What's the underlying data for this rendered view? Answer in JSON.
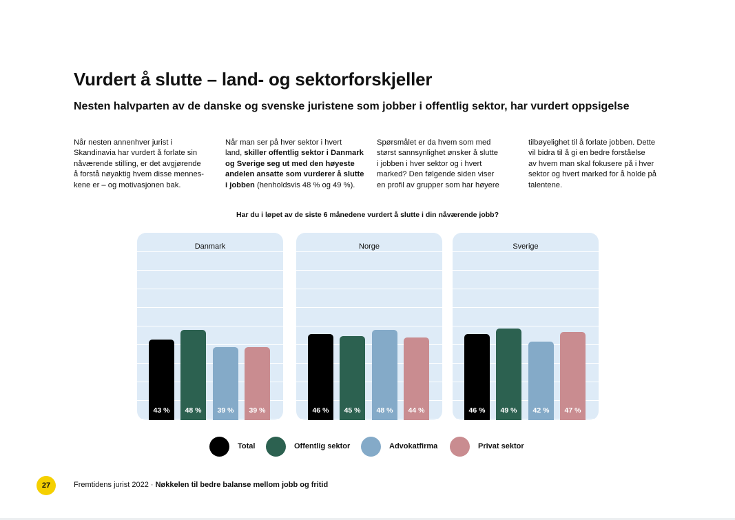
{
  "page": {
    "title": "Vurdert å slutte – land- og sektorforskjeller",
    "subtitle": "Nesten halvparten av de danske og svenske juristene som jobber i offentlig sektor, har vurdert oppsigelse"
  },
  "columns": [
    {
      "lines": [
        "Når nesten annenhver jurist i",
        "Skandinavia har vurdert å forlate sin",
        "nåværende stilling, er det avgjørende",
        "å forstå nøyaktig hvem disse mennes-",
        "kene er – og motivasjonen bak."
      ]
    },
    {
      "l1": "Når man ser på hver sektor i hvert",
      "l2a": "land, ",
      "l2b": "skiller offentlig sektor i Danmark",
      "l3": "og Sverige seg ut med den høyeste",
      "l4": "andelen ansatte som vurderer å slutte",
      "l5a": "i jobben",
      "l5b": " (henholdsvis 48 % og 49 %)."
    },
    {
      "lines": [
        "Spørsmålet er da hvem som med",
        "størst sannsynlighet ønsker å slutte",
        "i jobben i hver sektor og i hvert",
        "marked? Den følgende siden viser",
        "en profil av grupper som har høyere"
      ]
    },
    {
      "lines": [
        "tilbøyelighet til å forlate jobben. Dette",
        "vil bidra til å gi en bedre forståelse",
        "av hvem man skal fokusere på i hver",
        "sektor og hvert marked for å holde på",
        "talentene."
      ]
    }
  ],
  "chart_data": {
    "type": "bar",
    "title": "Har du i løpet av de siste 6 månedene vurdert å slutte i din nåværende jobb?",
    "ylim": [
      0,
      100
    ],
    "value_suffix": " %",
    "series_names": [
      "Total",
      "Offentlig sektor",
      "Advokatfirma",
      "Privat sektor"
    ],
    "colors": [
      "#000000",
      "#2c6150",
      "#84aac8",
      "#c98c90"
    ],
    "panels": [
      {
        "name": "Danmark",
        "values": [
          43,
          48,
          39,
          39
        ]
      },
      {
        "name": "Norge",
        "values": [
          46,
          45,
          48,
          44
        ]
      },
      {
        "name": "Sverige",
        "values": [
          46,
          49,
          42,
          47
        ]
      }
    ],
    "legend_position": "bottom"
  },
  "footer": {
    "page_number": "27",
    "text": "Fremtidens jurist 2022 · ",
    "bold_text": "Nøkkelen til bedre balanse mellom jobb og fritid"
  }
}
